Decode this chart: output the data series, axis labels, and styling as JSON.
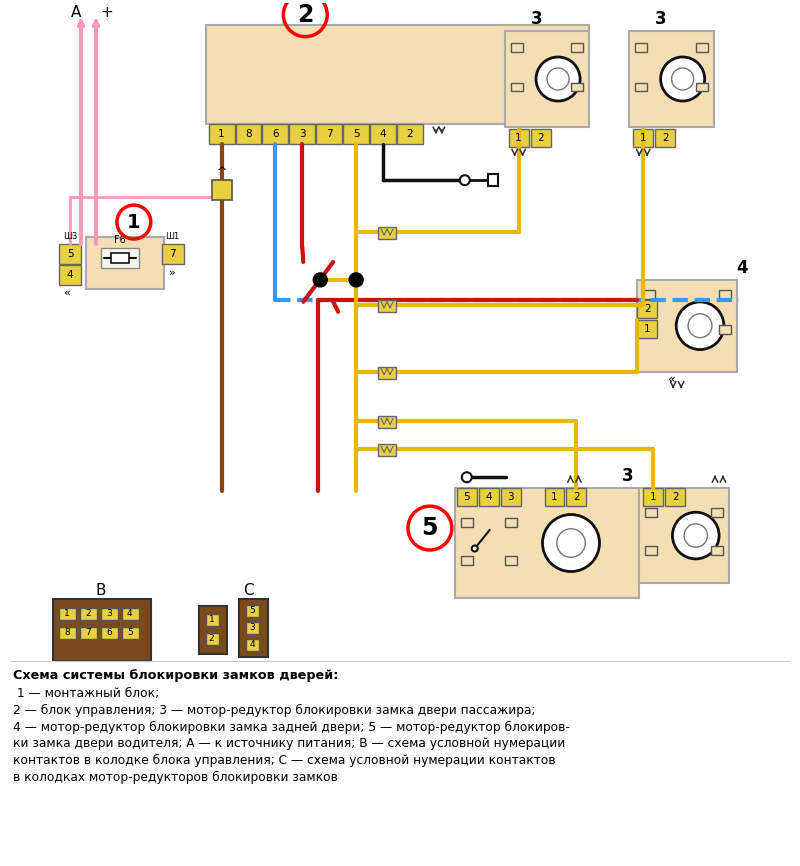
{
  "bg": "#ffffff",
  "beige": "#f5deb3",
  "beige2": "#f0d090",
  "yc": "#e8d040",
  "red": "#cc1111",
  "blue": "#3399ff",
  "yw": "#e8b800",
  "brn": "#8b4513",
  "pink": "#ff99bb",
  "blk": "#111111",
  "dkb": "#7a4a1e",
  "gray": "#888888",
  "conn2_pins": [
    "1",
    "8",
    "6",
    "3",
    "7",
    "5",
    "4",
    "2"
  ],
  "title": "Схема системы блокировки замков дверей:"
}
